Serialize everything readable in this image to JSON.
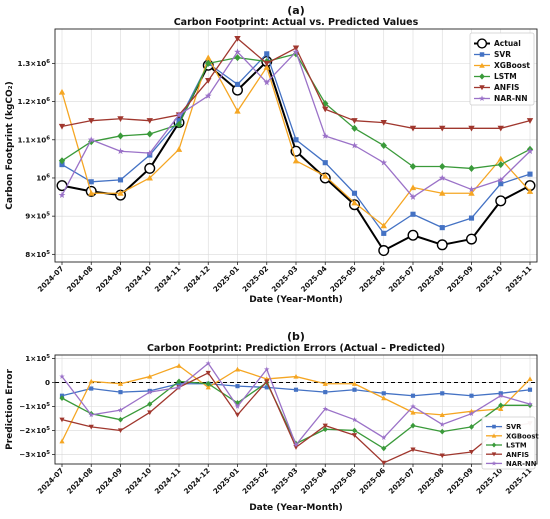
{
  "chart_data": [
    {
      "panel_label": "(a)",
      "type": "line",
      "title": "Carbon Footprint: Actual vs. Predicted Values",
      "xlabel": "Date (Year-Month)",
      "ylabel": "Carbon Footprint (kgCO₂)",
      "categories": [
        "2024-07",
        "2024-08",
        "2024-09",
        "2024-10",
        "2024-11",
        "2024-12",
        "2025-01",
        "2025-02",
        "2025-03",
        "2025-04",
        "2025-05",
        "2025-06",
        "2025-07",
        "2025-08",
        "2025-09",
        "2025-10",
        "2025-11"
      ],
      "ylim": [
        780000,
        1390000
      ],
      "yticks": [
        {
          "value": 800000,
          "base": "8×10",
          "exp": "5"
        },
        {
          "value": 900000,
          "base": "9×10",
          "exp": "5"
        },
        {
          "value": 1000000,
          "base": "10",
          "exp": "6"
        },
        {
          "value": 1100000,
          "base": "1.1×10",
          "exp": "6"
        },
        {
          "value": 1200000,
          "base": "1.2×10",
          "exp": "6"
        },
        {
          "value": 1300000,
          "base": "1.3×10",
          "exp": "6"
        }
      ],
      "grid": true,
      "legend_position": "top-right",
      "series": [
        {
          "name": "Actual",
          "color": "#000000",
          "marker": "circle-open",
          "values": [
            980000,
            965000,
            955000,
            1025000,
            1145000,
            1295000,
            1230000,
            1305000,
            1070000,
            1000000,
            930000,
            810000,
            850000,
            825000,
            840000,
            940000,
            980000
          ]
        },
        {
          "name": "SVR",
          "color": "#4472c4",
          "marker": "square",
          "values": [
            1035000,
            990000,
            995000,
            1060000,
            1150000,
            1300000,
            1245000,
            1325000,
            1100000,
            1040000,
            960000,
            855000,
            905000,
            870000,
            895000,
            985000,
            1010000
          ]
        },
        {
          "name": "XGBoost",
          "color": "#f5a623",
          "marker": "triangle-up",
          "values": [
            1225000,
            960000,
            960000,
            1000000,
            1075000,
            1315000,
            1175000,
            1290000,
            1045000,
            1005000,
            935000,
            875000,
            975000,
            960000,
            960000,
            1050000,
            965000
          ]
        },
        {
          "name": "LSTM",
          "color": "#3a9a3a",
          "marker": "diamond",
          "values": [
            1045000,
            1095000,
            1110000,
            1115000,
            1140000,
            1300000,
            1315000,
            1305000,
            1325000,
            1195000,
            1130000,
            1085000,
            1030000,
            1030000,
            1025000,
            1035000,
            1075000
          ]
        },
        {
          "name": "ANFIS",
          "color": "#a0372e",
          "marker": "triangle-down",
          "values": [
            1135000,
            1150000,
            1155000,
            1150000,
            1165000,
            1255000,
            1365000,
            1300000,
            1340000,
            1180000,
            1150000,
            1145000,
            1130000,
            1130000,
            1130000,
            1130000,
            1150000
          ]
        },
        {
          "name": "NAR-NN",
          "color": "#9b72c8",
          "marker": "star",
          "values": [
            955000,
            1100000,
            1070000,
            1065000,
            1165000,
            1215000,
            1330000,
            1250000,
            1330000,
            1110000,
            1085000,
            1040000,
            950000,
            1000000,
            970000,
            995000,
            1070000
          ]
        }
      ]
    },
    {
      "panel_label": "(b)",
      "type": "line",
      "title": "Carbon Footprint: Prediction Errors (Actual – Predicted)",
      "xlabel": "Date (Year-Month)",
      "ylabel": "Prediction Error",
      "categories": [
        "2024-07",
        "2024-08",
        "2024-09",
        "2024-10",
        "2024-11",
        "2024-12",
        "2025-01",
        "2025-02",
        "2025-03",
        "2025-04",
        "2025-05",
        "2025-06",
        "2025-07",
        "2025-08",
        "2025-09",
        "2025-10",
        "2025-11"
      ],
      "ylim": [
        -340000,
        115000
      ],
      "yticks": [
        {
          "value": 100000,
          "base": "1×10",
          "exp": "5"
        },
        {
          "value": 0,
          "base": "0",
          "exp": ""
        },
        {
          "value": -100000,
          "base": "−1×10",
          "exp": "5"
        },
        {
          "value": -200000,
          "base": "−2×10",
          "exp": "5"
        },
        {
          "value": -300000,
          "base": "−3×10",
          "exp": "5"
        }
      ],
      "zero_line": true,
      "grid": true,
      "legend_position": "bottom-right",
      "series": [
        {
          "name": "SVR",
          "color": "#4472c4",
          "marker": "square",
          "values": [
            -55000,
            -25000,
            -40000,
            -35000,
            -5000,
            -5000,
            -15000,
            -20000,
            -30000,
            -40000,
            -30000,
            -45000,
            -55000,
            -45000,
            -55000,
            -45000,
            -30000
          ]
        },
        {
          "name": "XGBoost",
          "color": "#f5a623",
          "marker": "triangle-up",
          "values": [
            -245000,
            5000,
            -5000,
            25000,
            70000,
            -20000,
            55000,
            15000,
            25000,
            -5000,
            -5000,
            -65000,
            -125000,
            -135000,
            -120000,
            -110000,
            15000
          ]
        },
        {
          "name": "LSTM",
          "color": "#3a9a3a",
          "marker": "diamond",
          "values": [
            -65000,
            -130000,
            -155000,
            -90000,
            5000,
            -5000,
            -85000,
            0,
            -255000,
            -195000,
            -200000,
            -275000,
            -180000,
            -205000,
            -185000,
            -95000,
            -95000
          ]
        },
        {
          "name": "ANFIS",
          "color": "#a0372e",
          "marker": "triangle-down",
          "values": [
            -155000,
            -185000,
            -200000,
            -125000,
            -20000,
            40000,
            -135000,
            5000,
            -270000,
            -180000,
            -220000,
            -335000,
            -280000,
            -305000,
            -290000,
            -190000,
            -170000
          ]
        },
        {
          "name": "NAR-NN",
          "color": "#9b72c8",
          "marker": "star",
          "values": [
            25000,
            -135000,
            -115000,
            -40000,
            -20000,
            80000,
            -100000,
            55000,
            -260000,
            -110000,
            -155000,
            -230000,
            -100000,
            -175000,
            -130000,
            -55000,
            -90000
          ]
        }
      ]
    }
  ]
}
